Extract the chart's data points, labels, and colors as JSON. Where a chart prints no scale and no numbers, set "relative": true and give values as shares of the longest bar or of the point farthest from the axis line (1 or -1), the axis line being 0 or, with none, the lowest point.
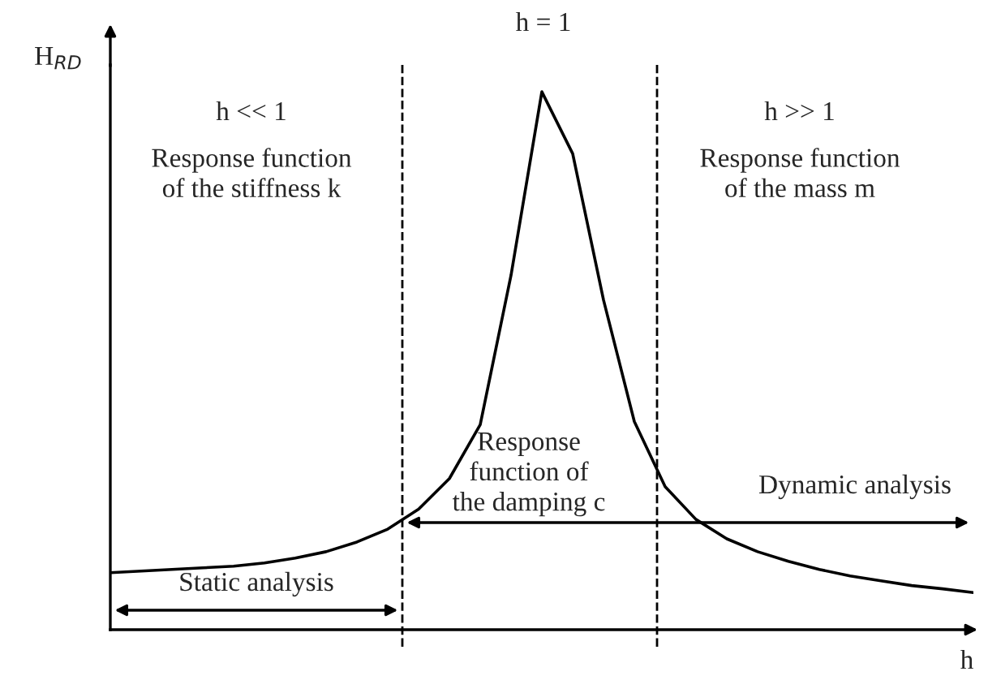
{
  "chart_data": {
    "type": "line",
    "relative": true,
    "title": "h = 1",
    "xlabel": "h",
    "ylabel": "H$_{RD}$",
    "categories": [
      null,
      null,
      null,
      null,
      null,
      null,
      null,
      null,
      null,
      null,
      null,
      null,
      null,
      null,
      null,
      null,
      null,
      null,
      null,
      null,
      null,
      null,
      null,
      null,
      null,
      null,
      null,
      null,
      null
    ],
    "series": [
      {
        "color": "#000000",
        "values": [
          0.106,
          0.109,
          0.112,
          0.115,
          0.118,
          0.124,
          0.133,
          0.145,
          0.163,
          0.187,
          0.224,
          0.281,
          0.381,
          0.659,
          1.0,
          0.885,
          0.613,
          0.387,
          0.266,
          0.205,
          0.169,
          0.145,
          0.127,
          0.112,
          0.1,
          0.091,
          0.082,
          0.076,
          0.069
        ]
      }
    ],
    "annotations": [
      "h << 1",
      "Response function\nof the stiffness k",
      "h >> 1",
      "Response function\nof the mass m",
      "Response\nfunction of\nthe damping c",
      "Static analysis",
      "Dynamic analysis"
    ],
    "legend": false,
    "marker": "none",
    "line_style": "solid"
  }
}
